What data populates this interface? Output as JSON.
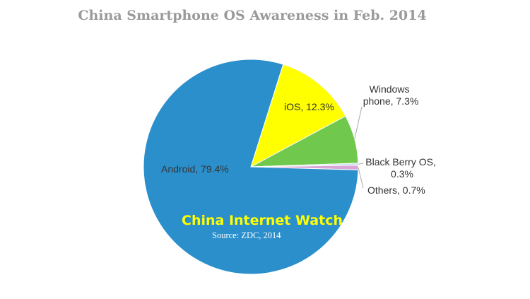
{
  "chart_data": {
    "type": "pie",
    "title": "China Smartphone OS Awareness in Feb. 2014",
    "slices": [
      {
        "name": "Android",
        "label_lines": [
          "Android, 79.4%"
        ],
        "value": 79.4,
        "color": "#2b8fcb"
      },
      {
        "name": "iOS",
        "label_lines": [
          "iOS, 12.3%"
        ],
        "value": 12.3,
        "color": "#ffff00"
      },
      {
        "name": "Windows phone",
        "label_lines": [
          "Windows",
          "phone, 7.3%"
        ],
        "value": 7.3,
        "color": "#70c94c"
      },
      {
        "name": "Black Berry OS",
        "label_lines": [
          "Black Berry OS,",
          "0.3%"
        ],
        "value": 0.3,
        "color": "#c6def2"
      },
      {
        "name": "Others",
        "label_lines": [
          "Others, 0.7%"
        ],
        "value": 0.7,
        "color": "#d9a6d6"
      }
    ],
    "legend": "none"
  },
  "watermark": {
    "brand": "China Internet Watch",
    "source": "Source: ZDC, 2014"
  }
}
